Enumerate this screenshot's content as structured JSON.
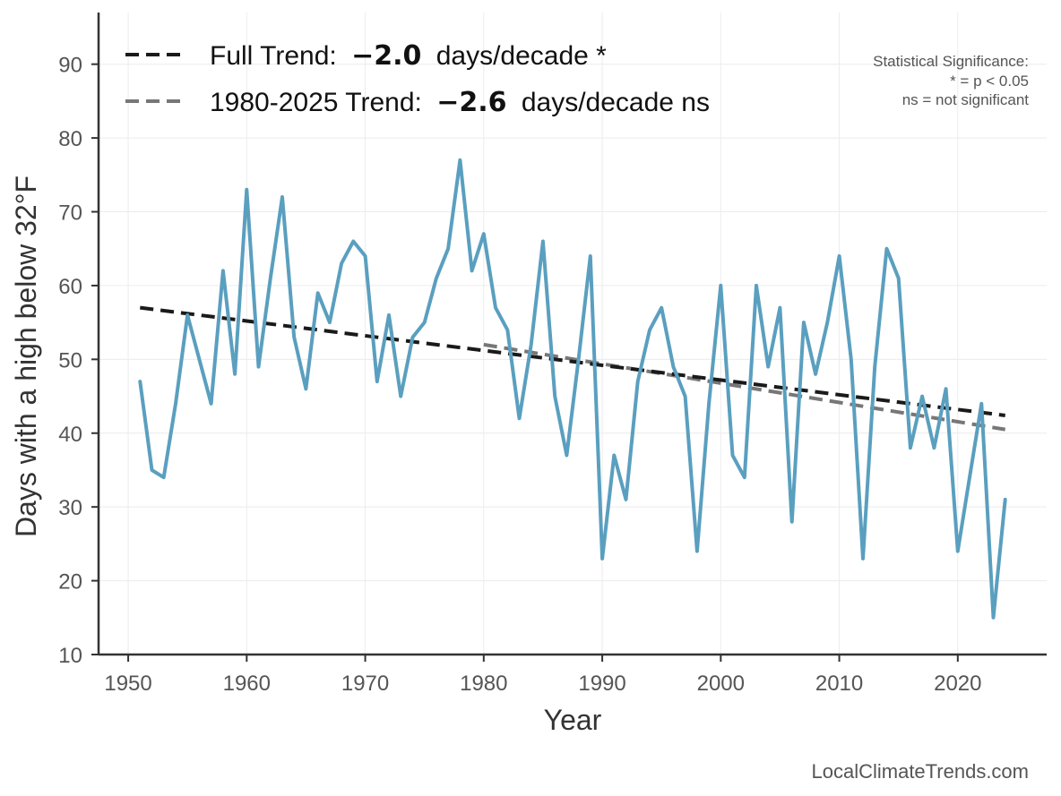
{
  "chart_data": {
    "type": "line",
    "xlabel": "Year",
    "ylabel": "Days with a high below 32°F",
    "xlim": [
      1947.5,
      2027.5
    ],
    "ylim": [
      10,
      97
    ],
    "x_ticks": [
      1950,
      1960,
      1970,
      1980,
      1990,
      2000,
      2010,
      2020
    ],
    "y_ticks": [
      10,
      20,
      30,
      40,
      50,
      60,
      70,
      80,
      90
    ],
    "grid": true,
    "legend_position": "top-left",
    "series": [
      {
        "color": "#5a9fbf",
        "x": [
          1951,
          1952,
          1953,
          1954,
          1955,
          1956,
          1957,
          1958,
          1959,
          1960,
          1961,
          1962,
          1963,
          1964,
          1965,
          1966,
          1967,
          1968,
          1969,
          1970,
          1971,
          1972,
          1973,
          1974,
          1975,
          1976,
          1977,
          1978,
          1979,
          1980,
          1981,
          1982,
          1983,
          1984,
          1985,
          1986,
          1987,
          1988,
          1989,
          1990,
          1991,
          1992,
          1993,
          1994,
          1995,
          1996,
          1997,
          1998,
          1999,
          2000,
          2001,
          2002,
          2003,
          2004,
          2005,
          2006,
          2007,
          2008,
          2009,
          2010,
          2011,
          2012,
          2013,
          2014,
          2015,
          2016,
          2017,
          2018,
          2019,
          2020,
          2021,
          2022,
          2023,
          2024
        ],
        "values": [
          47,
          35,
          34,
          44,
          56,
          50,
          44,
          62,
          48,
          73,
          49,
          61,
          72,
          53,
          46,
          59,
          55,
          63,
          66,
          64,
          47,
          56,
          45,
          53,
          55,
          61,
          65,
          77,
          62,
          67,
          57,
          54,
          42,
          52,
          66,
          45,
          37,
          50,
          64,
          23,
          37,
          31,
          47,
          54,
          57,
          49,
          45,
          24,
          44,
          60,
          37,
          34,
          60,
          49,
          57,
          28,
          55,
          48,
          55,
          64,
          50,
          23,
          49,
          65,
          61,
          38,
          45,
          38,
          46,
          24,
          34,
          44,
          15,
          31
        ]
      }
    ],
    "trend_lines": [
      {
        "label": "Full Trend:",
        "value": "−2.0",
        "suffix": "days/decade *",
        "x": [
          1951,
          2024
        ],
        "y": [
          57.0,
          42.4
        ],
        "color": "#1a1a1a"
      },
      {
        "label": "1980-2025 Trend:",
        "value": "−2.6",
        "suffix": "days/decade ns",
        "x": [
          1980,
          2024
        ],
        "y": [
          52.0,
          40.5
        ],
        "color": "#777777"
      }
    ],
    "significance_note": [
      "Statistical Significance:",
      "* = p < 0.05",
      "ns = not significant"
    ],
    "credit": "LocalClimateTrends.com"
  }
}
